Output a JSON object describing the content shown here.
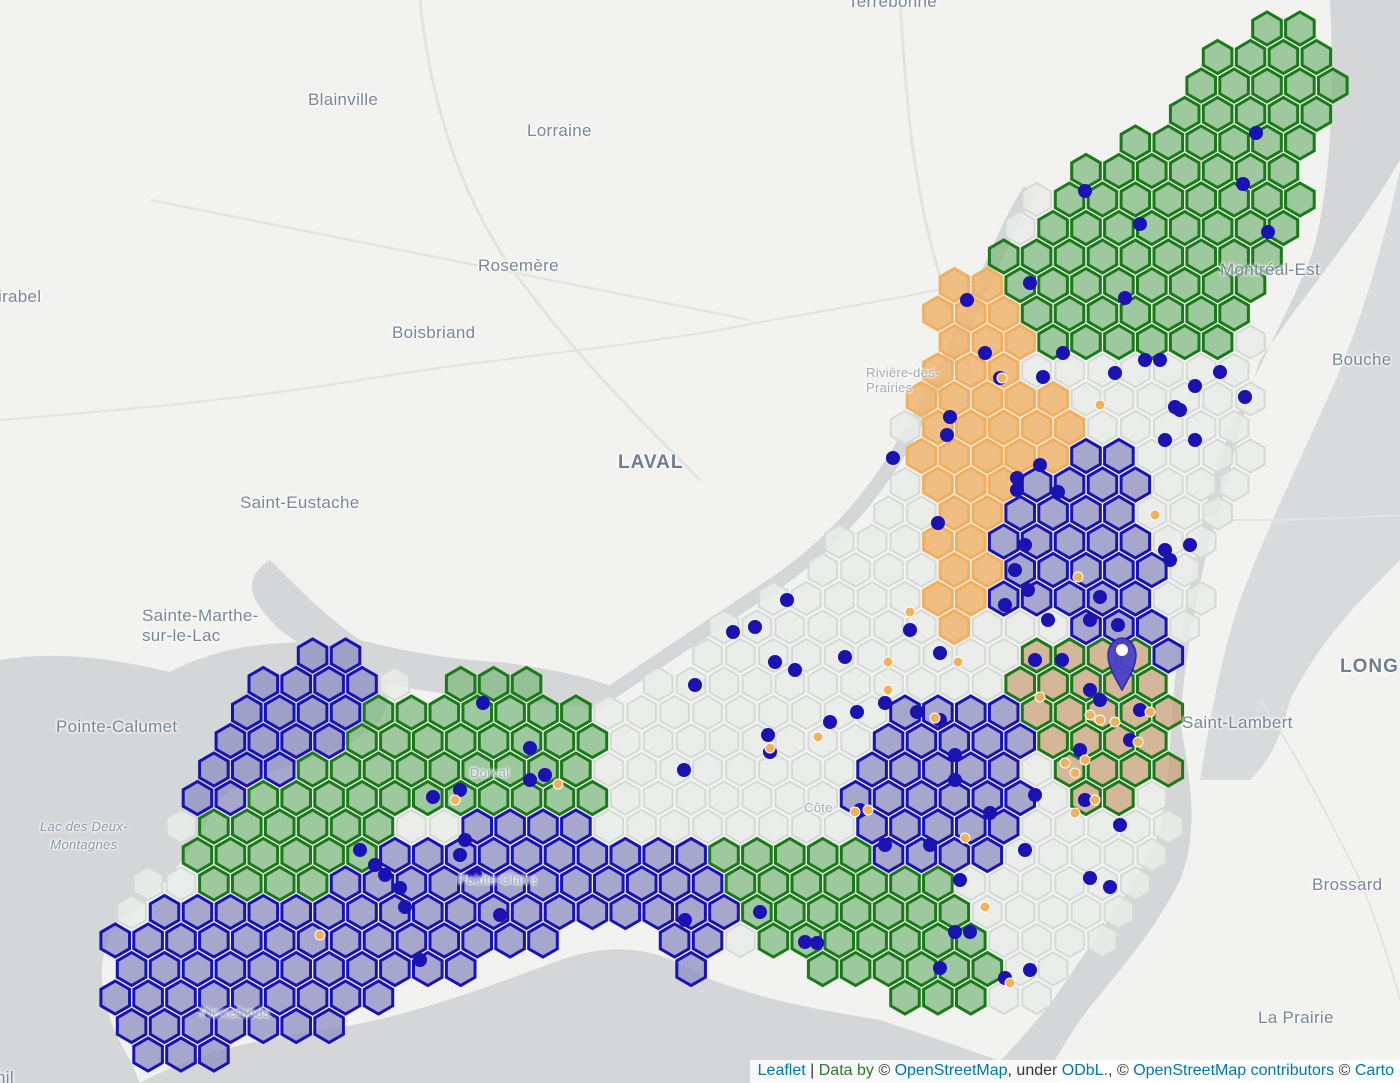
{
  "map": {
    "colors": {
      "land": "#f2f2f0",
      "water": "#d4d6d8",
      "blue_fill": "#8e8ec3",
      "blue_stroke": "#1a12b3",
      "green_fill": "#82b982",
      "green_stroke": "#1a7a1a",
      "orange_fill": "#f0b56e",
      "orange_stroke": "#f0b060",
      "grey_fill": "#eaece9",
      "grey_stroke": "#d6dad6",
      "brown_fill": "#caa27c",
      "point_blue": "#1a12b3",
      "point_orange": "#f0b25c"
    },
    "place_labels": [
      {
        "name": "Terrebonne",
        "kind": "normal"
      },
      {
        "name": "Blainville",
        "kind": "normal"
      },
      {
        "name": "Lorraine",
        "kind": "normal"
      },
      {
        "name": "Rosemère",
        "kind": "normal"
      },
      {
        "name": "Boisbriand",
        "kind": "normal"
      },
      {
        "name": "irabel",
        "kind": "normal"
      },
      {
        "name": "LAVAL",
        "kind": "big"
      },
      {
        "name": "Saint-Eustache",
        "kind": "normal"
      },
      {
        "name": "Sainte-Marthe-\nsur-le-Lac",
        "kind": "normal"
      },
      {
        "name": "Pointe-Calumet",
        "kind": "normal"
      },
      {
        "name": "Lac des Deux-\nMontagnes",
        "kind": "water"
      },
      {
        "name": "Montréal-Est",
        "kind": "normal"
      },
      {
        "name": "Bouche",
        "kind": "normal"
      },
      {
        "name": "LONG",
        "kind": "big"
      },
      {
        "name": "Saint-Lambert",
        "kind": "normal"
      },
      {
        "name": "Brossard",
        "kind": "normal"
      },
      {
        "name": "La Prairie",
        "kind": "normal"
      },
      {
        "name": "Rivière-des-\nPrairies",
        "kind": "small"
      },
      {
        "name": "Côte",
        "kind": "small"
      },
      {
        "name": "Dorval",
        "kind": "small"
      },
      {
        "name": "Pointe-Claire",
        "kind": "small"
      },
      {
        "name": "Pierrefonds",
        "kind": "small"
      },
      {
        "name": "nil",
        "kind": "normal"
      }
    ],
    "selected_marker": {
      "icon": "map-pin-icon"
    }
  },
  "attribution": {
    "leaflet": "Leaflet",
    "separator": " | ",
    "data_by": "Data by ",
    "copy1": "©",
    "osm": "OpenStreetMap",
    "under": ", under ",
    "odbl": "ODbL.",
    "comma": ", ",
    "copy2": "©",
    "osm_contrib": "OpenStreetMap contributors",
    "copy3": " ©",
    "carto": "Carto"
  }
}
